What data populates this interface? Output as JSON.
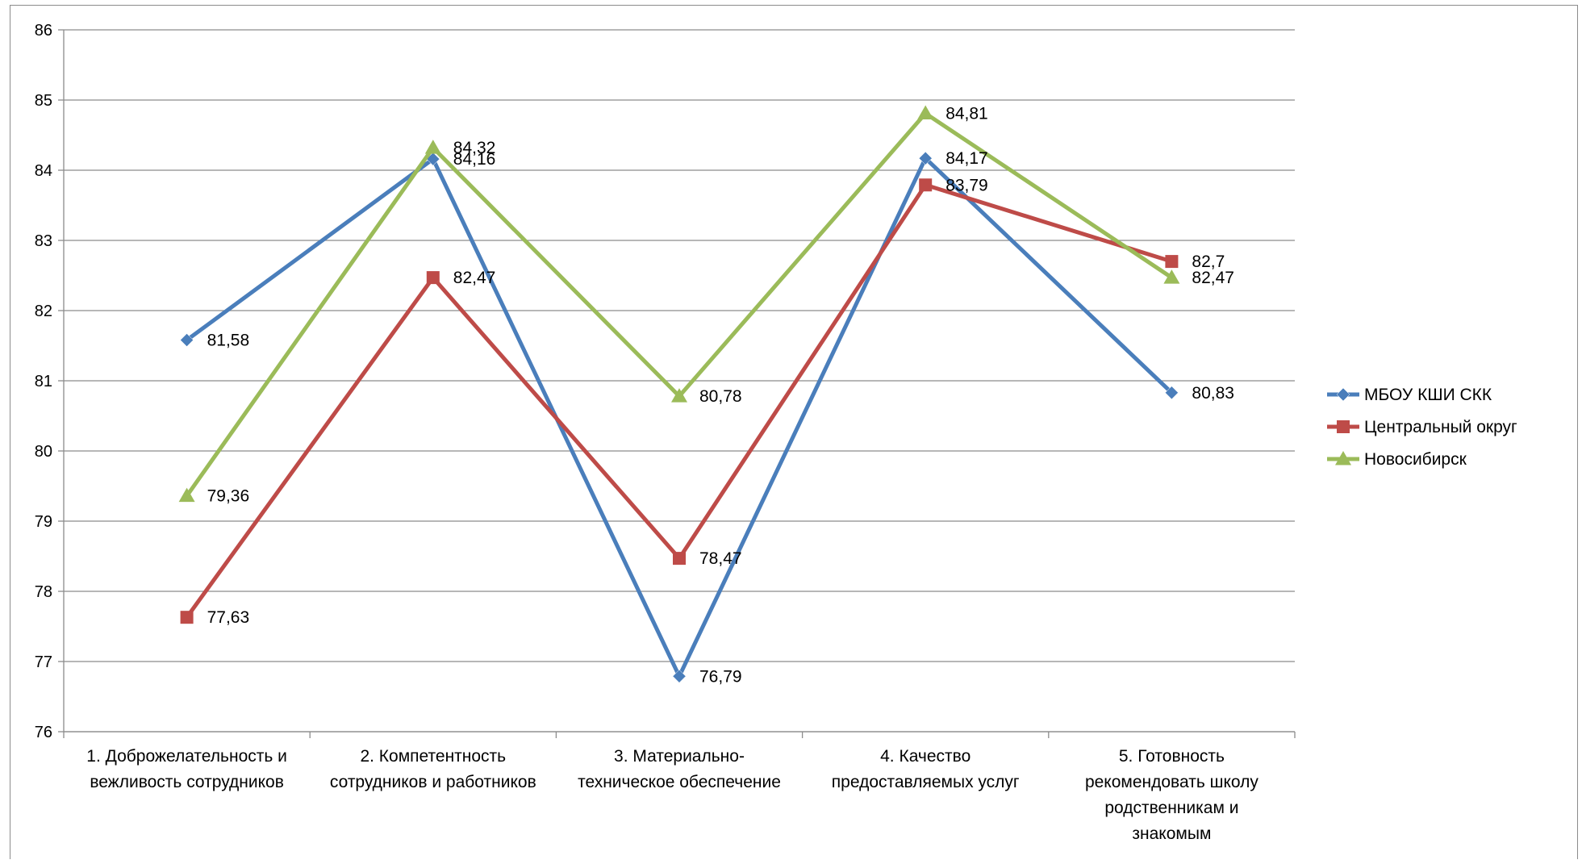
{
  "chart_data": {
    "type": "line",
    "title": "",
    "xlabel": "",
    "ylabel": "",
    "ylim": [
      76,
      86
    ],
    "yticks": [
      "76",
      "77",
      "78",
      "79",
      "80",
      "81",
      "82",
      "83",
      "84",
      "85",
      "86"
    ],
    "grid": true,
    "legend_position": "right",
    "categories": [
      [
        "1. Доброжелательность и",
        "вежливость сотрудников"
      ],
      [
        "2. Компетентность",
        "сотрудников и работников"
      ],
      [
        "3. Материально-",
        "техническое обеспечение"
      ],
      [
        "4. Качество",
        "предоставляемых услуг"
      ],
      [
        "5. Готовность",
        "рекомендовать школу",
        "родственникам и",
        "знакомым"
      ]
    ],
    "series": [
      {
        "name": "МБОУ КШИ СКК",
        "color": "#4a7ebb",
        "marker": "diamond",
        "values": [
          81.58,
          84.16,
          76.79,
          84.17,
          80.83
        ],
        "labels": [
          "81,58",
          "84,16",
          "76,79",
          "84,17",
          "80,83"
        ]
      },
      {
        "name": "Центральный округ",
        "color": "#be4b48",
        "marker": "square",
        "values": [
          77.63,
          82.47,
          78.47,
          83.79,
          82.7
        ],
        "labels": [
          "77,63",
          "82,47",
          "78,47",
          "83,79",
          "82,7"
        ]
      },
      {
        "name": "Новосибирск",
        "color": "#9bbb59",
        "marker": "triangle",
        "values": [
          79.36,
          84.32,
          80.78,
          84.81,
          82.47
        ],
        "labels": [
          "79,36",
          "84,32",
          "80,78",
          "84,81",
          "82,47"
        ]
      }
    ]
  }
}
